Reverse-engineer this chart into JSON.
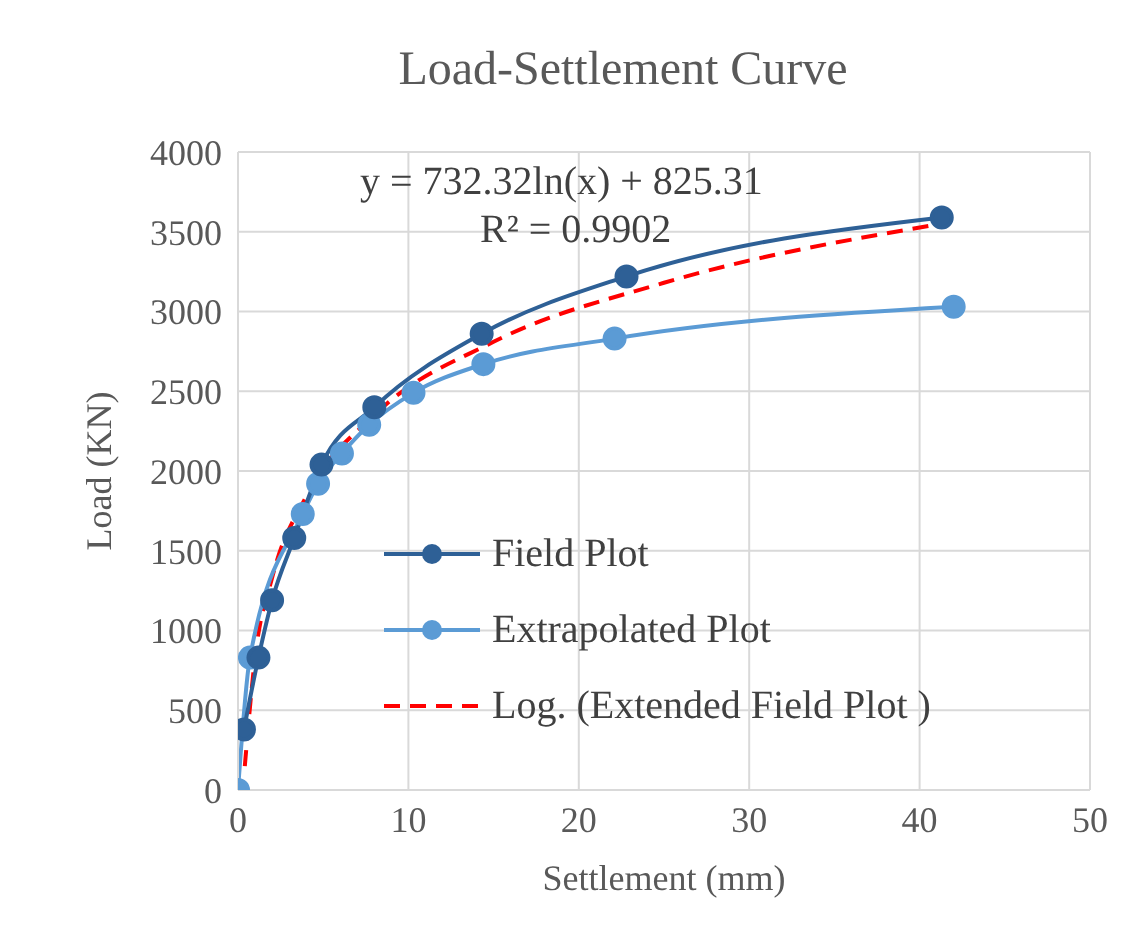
{
  "chart_data": {
    "type": "line",
    "title": "Load-Settlement Curve",
    "xlabel": "Settlement (mm)",
    "ylabel": "Load (KN)",
    "xlim": [
      0,
      50
    ],
    "xticks": [
      0,
      10,
      20,
      30,
      40,
      50
    ],
    "ylim": [
      0,
      4000
    ],
    "yticks": [
      0,
      500,
      1000,
      1500,
      2000,
      2500,
      3000,
      3500,
      4000
    ],
    "grid": true,
    "legend": "bottom right",
    "marker": "circle",
    "line_style": "solid",
    "annotations": [
      "y = 732.32ln(x) + 825.31",
      "R² = 0.9902"
    ],
    "series": [
      {
        "name": "Field Plot",
        "color": "#2e6096",
        "x": [
          0.35,
          1.2,
          2.0,
          3.3,
          4.9,
          8.0,
          14.3,
          22.8,
          41.3
        ],
        "values": [
          380,
          830,
          1190,
          1580,
          2040,
          2400,
          2860,
          3220,
          3590
        ]
      },
      {
        "name": "Extrapolated Plot",
        "color": "#5b9bd5",
        "x": [
          0,
          0.7,
          3.8,
          4.7,
          6.1,
          7.7,
          10.3,
          14.4,
          22.1,
          42.0
        ],
        "values": [
          0,
          830,
          1730,
          1920,
          2110,
          2290,
          2490,
          2670,
          2830,
          3030
        ]
      },
      {
        "name": "Log. (Extended Field Plot )",
        "type": "line",
        "color": "#ff0000",
        "line_style": "dashed",
        "marker": "none",
        "x": [
          0.4,
          1,
          2,
          4,
          8,
          15,
          25,
          41.3
        ],
        "values": [
          150,
          830,
          1330,
          1840,
          2350,
          2810,
          3180,
          3550
        ]
      }
    ]
  }
}
